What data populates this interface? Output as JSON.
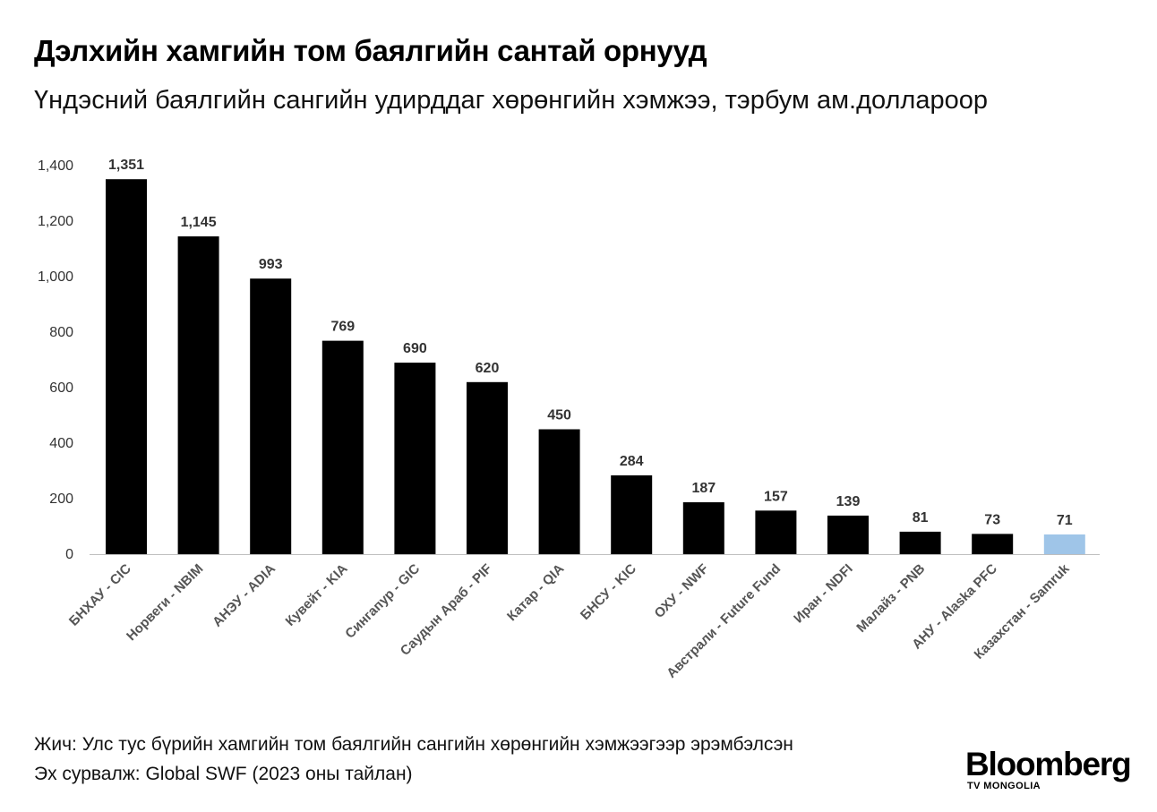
{
  "title": "Дэлхийн хамгийн том баялгийн сантай орнууд",
  "subtitle": "Үндэсний баялгийн сангийн удирддаг хөрөнгийн хэмжээ, тэрбум ам.доллароор",
  "note": "Жич: Улс тус бүрийн хамгийн том баялгийн сангийн хөрөнгийн хэмжээгээр эрэмбэлсэн",
  "source": "Эх сурвалж: Global SWF (2023 оны тайлан)",
  "brand": {
    "name": "Bloomberg",
    "sub": "TV MONGOLIA"
  },
  "colors": {
    "bar": "#000000",
    "highlight": "#9fc5e8",
    "axis": "#bfbfbf"
  },
  "chart_data": {
    "type": "bar",
    "title": "Дэлхийн хамгийн том баялгийн сантай орнууд",
    "subtitle": "Үндэсний баялгийн сангийн удирддаг хөрөнгийн хэмжээ, тэрбум ам.доллароор",
    "xlabel": "",
    "ylabel": "",
    "ylim": [
      0,
      1400
    ],
    "yticks": [
      0,
      200,
      400,
      600,
      800,
      1000,
      1200,
      1400
    ],
    "ytick_labels": [
      "0",
      "200",
      "400",
      "600",
      "800",
      "1,000",
      "1,200",
      "1,400"
    ],
    "grid": false,
    "categories": [
      "БНХАУ - CIC",
      "Норвеги - NBIM",
      "АНЭУ - ADIA",
      "Кувейт - KIA",
      "Сингапур - GIC",
      "Саудын Араб - PIF",
      "Катар - QIA",
      "БНСУ - KIC",
      "ОХУ - NWF",
      "Австрали - Future Fund",
      "Иран - NDFI",
      "Малайз - PNB",
      "АНУ - Alaska PFC",
      "Казахстан - Samruk"
    ],
    "values": [
      1351,
      1145,
      993,
      769,
      690,
      620,
      450,
      284,
      187,
      157,
      139,
      81,
      73,
      71
    ],
    "value_labels": [
      "1,351",
      "1,145",
      "993",
      "769",
      "690",
      "620",
      "450",
      "284",
      "187",
      "157",
      "139",
      "81",
      "73",
      "71"
    ],
    "highlight_index": 13
  }
}
